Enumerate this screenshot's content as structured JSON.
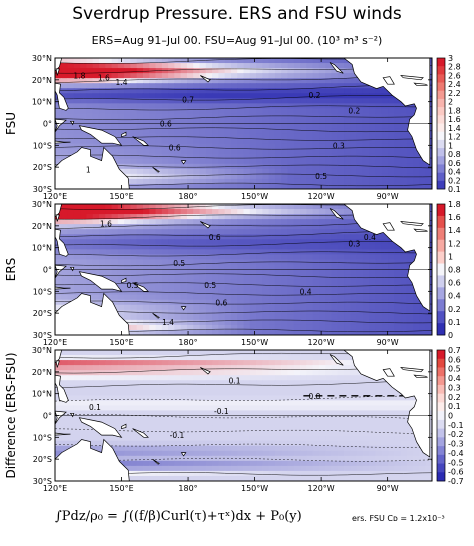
{
  "chart_data": [
    {
      "type": "heatmap",
      "row_label": "FSU",
      "x_ticks": [
        "120°E",
        "150°E",
        "180°",
        "150°W",
        "120°W",
        "90°W"
      ],
      "y_ticks": [
        "30°N",
        "20°N",
        "10°N",
        "0°",
        "10°S",
        "20°S",
        "30°S"
      ],
      "xlim_degE": [
        120,
        290
      ],
      "ylim_deg": [
        -30,
        30
      ],
      "colorbar": {
        "ticks": [
          "3",
          "2.8",
          "2.6",
          "2.4",
          "2.2",
          "2",
          "1.8",
          "1.6",
          "1.4",
          "1.2",
          "1",
          "0.8",
          "0.6",
          "0.4",
          "0.2",
          "0.1"
        ],
        "colors": [
          "#d7192a",
          "#e03a3e",
          "#e85a56",
          "#ee7a72",
          "#f49a92",
          "#f8b4ae",
          "#fbcac4",
          "#fcdcd8",
          "#fdecea",
          "#f6f6fb",
          "#dcdcf2",
          "#c0c0ea",
          "#a2a2e0",
          "#8080d4",
          "#5f5fc8",
          "#3d3dba"
        ]
      },
      "contour_labels": [
        {
          "text": "1.8",
          "lon": 131,
          "lat": 22
        },
        {
          "text": "1.6",
          "lon": 142,
          "lat": 21
        },
        {
          "text": "1.4",
          "lon": 150,
          "lat": 19
        },
        {
          "text": "0.7",
          "lon": 180,
          "lat": 11
        },
        {
          "text": "0.6",
          "lon": 170,
          "lat": 0
        },
        {
          "text": "0.6",
          "lon": 174,
          "lat": -11
        },
        {
          "text": "0.2",
          "lon": 237,
          "lat": 13
        },
        {
          "text": "0.2",
          "lon": 255,
          "lat": 6
        },
        {
          "text": "0.3",
          "lon": 248,
          "lat": -10
        },
        {
          "text": "0.5",
          "lon": 240,
          "lat": -24
        },
        {
          "text": "1",
          "lon": 135,
          "lat": -21
        }
      ]
    },
    {
      "type": "heatmap",
      "row_label": "ERS",
      "x_ticks": [
        "120°E",
        "150°E",
        "180°",
        "150°W",
        "120°W",
        "90°W"
      ],
      "y_ticks": [
        "30°N",
        "20°N",
        "10°N",
        "0°",
        "10°S",
        "20°S",
        "30°S"
      ],
      "xlim_degE": [
        120,
        290
      ],
      "ylim_deg": [
        -30,
        30
      ],
      "colorbar": {
        "ticks": [
          "1.8",
          "1.6",
          "1.4",
          "1.2",
          "1",
          "0.8",
          "0.6",
          "0.4",
          "0.2",
          "0.1",
          "0"
        ],
        "colors": [
          "#d7192a",
          "#e5504c",
          "#ef7f77",
          "#f7aaa3",
          "#fccfca",
          "#f5f5fa",
          "#cfcfee",
          "#a6a6e2",
          "#7c7cd2",
          "#5050c2",
          "#2f2fb2"
        ]
      },
      "contour_labels": [
        {
          "text": "1.6",
          "lon": 143,
          "lat": 21
        },
        {
          "text": "0.6",
          "lon": 192,
          "lat": 15
        },
        {
          "text": "0.4",
          "lon": 262,
          "lat": 15
        },
        {
          "text": "0.3",
          "lon": 255,
          "lat": 12
        },
        {
          "text": "0.5",
          "lon": 176,
          "lat": 3
        },
        {
          "text": "0.5",
          "lon": 155,
          "lat": -7
        },
        {
          "text": "0.5",
          "lon": 190,
          "lat": -7
        },
        {
          "text": "0.6",
          "lon": 195,
          "lat": -15
        },
        {
          "text": "0.4",
          "lon": 233,
          "lat": -10
        },
        {
          "text": "1.4",
          "lon": 171,
          "lat": -24
        }
      ]
    },
    {
      "type": "heatmap",
      "row_label": "Difference (ERS-FSU)",
      "x_ticks": [
        "120°E",
        "150°E",
        "180°",
        "150°W",
        "120°W",
        "90°W"
      ],
      "y_ticks": [
        "30°N",
        "20°N",
        "10°N",
        "0°",
        "10°S",
        "20°S",
        "30°S"
      ],
      "xlim_degE": [
        120,
        290
      ],
      "ylim_deg": [
        -30,
        30
      ],
      "colorbar": {
        "ticks": [
          "0.7",
          "0.6",
          "0.5",
          "0.4",
          "0.3",
          "0.2",
          "0.1",
          "0",
          "-0.1",
          "-0.2",
          "-0.3",
          "-0.4",
          "-0.5",
          "-0.6",
          "-0.7"
        ],
        "colors": [
          "#d7192a",
          "#e3483f",
          "#ed7068",
          "#f49890",
          "#f9bcb6",
          "#fcd9d5",
          "#fdedeb",
          "#f2f2fa",
          "#dcdcf2",
          "#c2c2ea",
          "#a4a4e0",
          "#8484d5",
          "#6464ca",
          "#4646be",
          "#2b2bb2"
        ]
      },
      "contour_labels": [
        {
          "text": "0.1",
          "lon": 201,
          "lat": 16
        },
        {
          "text": "0.0",
          "lon": 237,
          "lat": 9
        },
        {
          "text": "0.1",
          "lon": 138,
          "lat": 4
        },
        {
          "text": "-0.1",
          "lon": 195,
          "lat": 2
        },
        {
          "text": "-0.1",
          "lon": 175,
          "lat": -9
        }
      ]
    }
  ],
  "header": {
    "title": "Sverdrup Pressure. ERS and FSU winds",
    "subtitle": "ERS=Aug 91–Jul 00. FSU=Aug 91–Jul 00. (10³ m³ s⁻²)"
  },
  "footer": {
    "formula": "∫Pdz/ρ₀ = ∫((f/β)Curl(τ)+τˣ)dx + P₀(y)",
    "note": "ers. FSU Cᴅ = 1.2x10⁻³"
  },
  "style": {
    "land_fill": "#ffffff",
    "coast_color": "#000000",
    "contour_color": "#000000",
    "warm": "#d7192a",
    "cool": "#2f2fb2",
    "neutral": "#f4f4fa"
  }
}
